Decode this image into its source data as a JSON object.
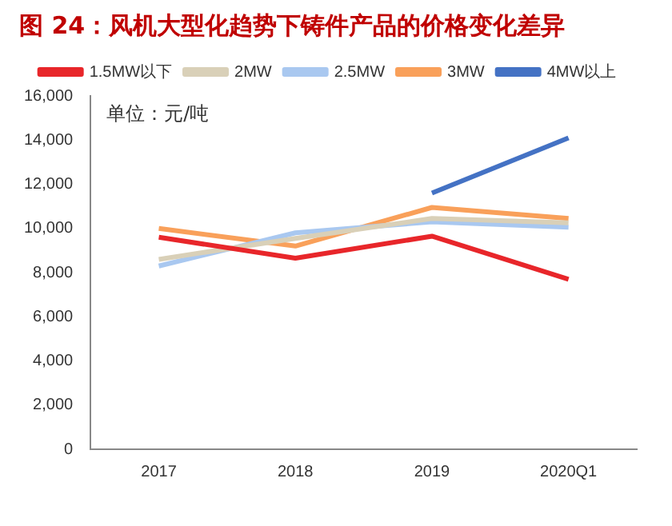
{
  "chart_data": {
    "type": "line",
    "title": "图 24：风机大型化趋势下铸件产品的价格变化差异",
    "categories": [
      "2017",
      "2018",
      "2019",
      "2020Q1"
    ],
    "series": [
      {
        "name": "1.5MW以下",
        "color": "#e8262a",
        "values": [
          9600,
          8650,
          9650,
          7700
        ]
      },
      {
        "name": "2MW",
        "color": "#d9d0b8",
        "values": [
          8600,
          9550,
          10450,
          10250
        ]
      },
      {
        "name": "2.5MW",
        "color": "#a9c8f0",
        "values": [
          8300,
          9800,
          10300,
          10050
        ]
      },
      {
        "name": "3MW",
        "color": "#f9a05a",
        "values": [
          10000,
          9200,
          10950,
          10450
        ]
      },
      {
        "name": "4MW以上",
        "color": "#4472c4",
        "values": [
          null,
          null,
          11600,
          14100
        ]
      }
    ],
    "ylim": [
      0,
      16000
    ],
    "yticks": [
      0,
      {
        "value": 2000,
        "label": "2,000"
      },
      {
        "value": 4000,
        "label": "4,000"
      },
      {
        "value": 6000,
        "label": "6,000"
      },
      {
        "value": 8000,
        "label": "8,000"
      },
      {
        "value": 10000,
        "label": "10,000"
      },
      {
        "value": 12000,
        "label": "12,000"
      },
      {
        "value": 14000,
        "label": "14,000"
      },
      {
        "value": 16000,
        "label": "16,000"
      }
    ],
    "annotations": [
      "单位：元/吨"
    ],
    "grid": false,
    "legend": "top",
    "marker": "none"
  }
}
